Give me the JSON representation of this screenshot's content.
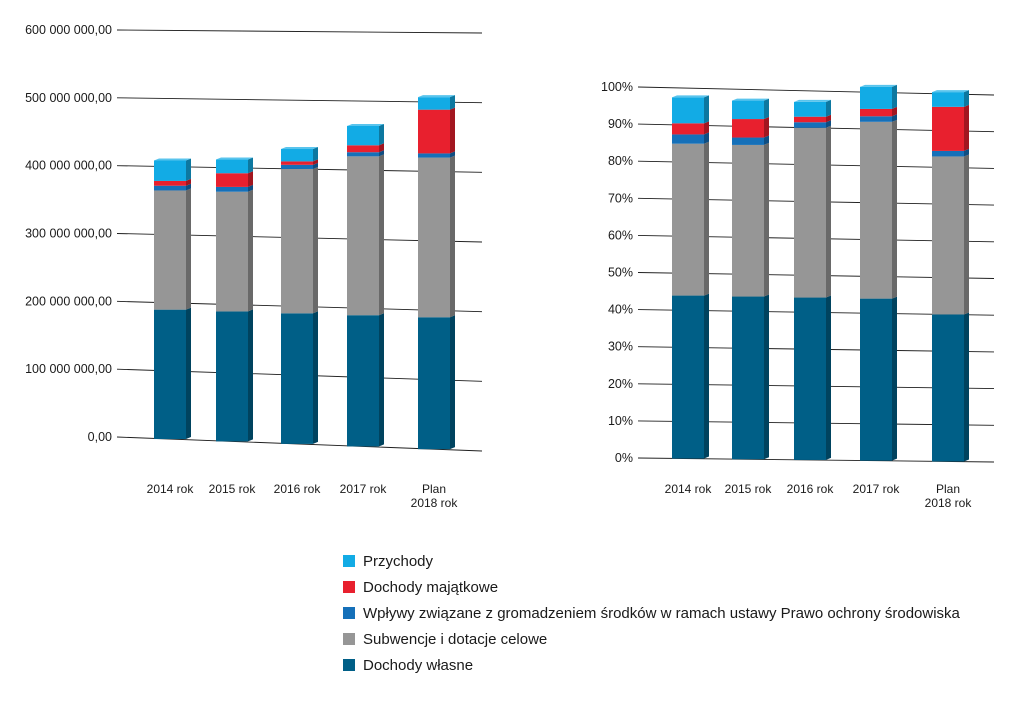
{
  "colors": {
    "przychody": "#12abe5",
    "majatkowe": "#e8202e",
    "wplywy": "#1570b9",
    "subwencje": "#969696",
    "wlasne": "#005f87"
  },
  "legend": [
    {
      "key": "przychody",
      "label": "Przychody"
    },
    {
      "key": "majatkowe",
      "label": "Dochody majątkowe"
    },
    {
      "key": "wplywy",
      "label": "Wpływy związane z gromadzeniem środków w ramach ustawy Prawo ochrony środowiska"
    },
    {
      "key": "subwencje",
      "label": "Subwencje i dotacje celowe"
    },
    {
      "key": "wlasne",
      "label": "Dochody własne"
    }
  ],
  "chart_data": [
    {
      "type": "bar",
      "stacked": true,
      "categories": [
        [
          "2014 rok"
        ],
        [
          "2015 rok"
        ],
        [
          "2016 rok"
        ],
        [
          "2017 rok"
        ],
        [
          "Plan",
          "2018 rok"
        ]
      ],
      "ylim": [
        0,
        600000000
      ],
      "y_ticks": [
        {
          "value": 0,
          "label": "0,00"
        },
        {
          "value": 100000000,
          "label": "100 000 000,00"
        },
        {
          "value": 200000000,
          "label": "200 000 000,00"
        },
        {
          "value": 300000000,
          "label": "300 000 000,00"
        },
        {
          "value": 400000000,
          "label": "400 000 000,00"
        },
        {
          "value": 500000000,
          "label": "500 000 000,00"
        },
        {
          "value": 600000000,
          "label": "600 000 000,00"
        }
      ],
      "grid": true,
      "series": [
        {
          "key": "wlasne",
          "name": "Dochody własne",
          "values": [
            190000000,
            190000000,
            190000000,
            190000000,
            190000000
          ]
        },
        {
          "key": "subwencje",
          "name": "Subwencje i dotacje celowe",
          "values": [
            175000000,
            175000000,
            210000000,
            230000000,
            230000000
          ]
        },
        {
          "key": "wplywy",
          "name": "Wpływy związane z gromadzeniem środków w ramach ustawy Prawo ochrony środowiska",
          "values": [
            7000000,
            7000000,
            6000000,
            6000000,
            6000000
          ]
        },
        {
          "key": "majatkowe",
          "name": "Dochody majątkowe",
          "values": [
            7000000,
            20000000,
            5000000,
            10000000,
            63000000
          ]
        },
        {
          "key": "przychody",
          "name": "Przychody",
          "values": [
            30000000,
            20000000,
            18000000,
            28000000,
            18000000
          ]
        }
      ]
    },
    {
      "type": "bar",
      "stacked": true,
      "categories": [
        [
          "2014 rok"
        ],
        [
          "2015 rok"
        ],
        [
          "2016 rok"
        ],
        [
          "2017 rok"
        ],
        [
          "Plan",
          "2018 rok"
        ]
      ],
      "ylim": [
        0,
        100
      ],
      "y_ticks": [
        {
          "value": 0,
          "label": "0%"
        },
        {
          "value": 10,
          "label": "10%"
        },
        {
          "value": 20,
          "label": "20%"
        },
        {
          "value": 30,
          "label": "30%"
        },
        {
          "value": 40,
          "label": "40%"
        },
        {
          "value": 50,
          "label": "50%"
        },
        {
          "value": 60,
          "label": "60%"
        },
        {
          "value": 70,
          "label": "70%"
        },
        {
          "value": 80,
          "label": "80%"
        },
        {
          "value": 90,
          "label": "90%"
        },
        {
          "value": 100,
          "label": "100%"
        }
      ],
      "grid": true,
      "series": [
        {
          "key": "wlasne",
          "name": "Dochody własne",
          "values": [
            44,
            44,
            44,
            44,
            40
          ]
        },
        {
          "key": "subwencje",
          "name": "Subwencje i dotacje celowe",
          "values": [
            41,
            41,
            46,
            48,
            43
          ]
        },
        {
          "key": "wplywy",
          "name": "Wpływy związane z gromadzeniem środków w ramach ustawy Prawo ochrony środowiska",
          "values": [
            2.5,
            2,
            1.5,
            1.5,
            1.5
          ]
        },
        {
          "key": "majatkowe",
          "name": "Dochody majątkowe",
          "values": [
            3,
            5,
            1.5,
            2,
            12
          ]
        },
        {
          "key": "przychody",
          "name": "Przychody",
          "values": [
            7,
            5,
            4,
            6,
            4
          ]
        }
      ]
    }
  ]
}
